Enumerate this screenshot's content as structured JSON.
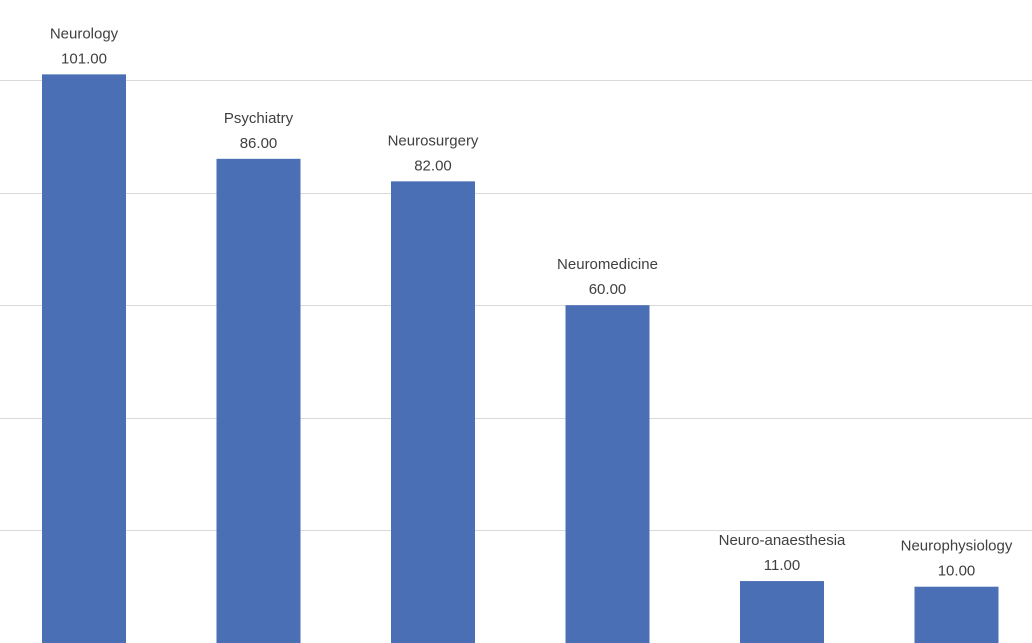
{
  "chart_data": {
    "type": "bar",
    "categories": [
      "Neurology",
      "Psychiatry",
      "Neurosurgery",
      "Neuromedicine",
      "Neuro-anaesthesia",
      "Neurophysiology"
    ],
    "values": [
      101,
      86,
      82,
      60,
      11,
      10
    ],
    "value_labels": [
      "101.00",
      "86.00",
      "82.00",
      "60.00",
      "11.00",
      "10.00"
    ],
    "ylim": [
      0,
      100
    ],
    "grid": true,
    "colors": {
      "bar": "#4a6fb5",
      "grid": "#d9d9d9",
      "text": "#404040"
    }
  }
}
